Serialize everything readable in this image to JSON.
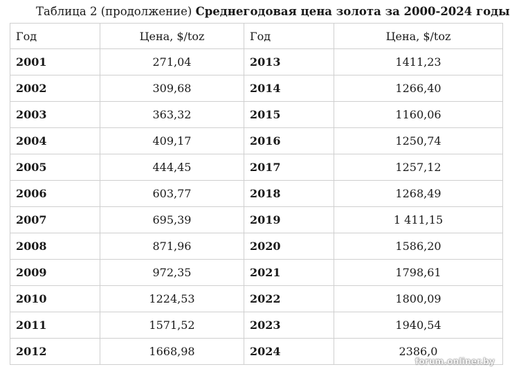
{
  "caption": {
    "prefix": "Таблица 2 (продолжение) ",
    "title": "Среднегодовая цена золота за 2000-2024 годы"
  },
  "table": {
    "headers": {
      "year_left": "Год",
      "price_left": "Цена, $/toz",
      "year_right": "Год",
      "price_right": "Цена, $/toz"
    },
    "rows": [
      {
        "year_left": "2001",
        "price_left": "271,04",
        "year_right": "2013",
        "price_right": "1411,23"
      },
      {
        "year_left": "2002",
        "price_left": "309,68",
        "year_right": "2014",
        "price_right": "1266,40"
      },
      {
        "year_left": "2003",
        "price_left": "363,32",
        "year_right": "2015",
        "price_right": "1160,06"
      },
      {
        "year_left": "2004",
        "price_left": "409,17",
        "year_right": "2016",
        "price_right": "1250,74"
      },
      {
        "year_left": "2005",
        "price_left": "444,45",
        "year_right": "2017",
        "price_right": "1257,12"
      },
      {
        "year_left": "2006",
        "price_left": "603,77",
        "year_right": "2018",
        "price_right": "1268,49"
      },
      {
        "year_left": "2007",
        "price_left": "695,39",
        "year_right": "2019",
        "price_right": "1 411,15"
      },
      {
        "year_left": "2008",
        "price_left": "871,96",
        "year_right": "2020",
        "price_right": "1586,20"
      },
      {
        "year_left": "2009",
        "price_left": "972,35",
        "year_right": "2021",
        "price_right": "1798,61"
      },
      {
        "year_left": "2010",
        "price_left": "1224,53",
        "year_right": "2022",
        "price_right": "1800,09"
      },
      {
        "year_left": "2011",
        "price_left": "1571,52",
        "year_right": "2023",
        "price_right": "1940,54"
      },
      {
        "year_left": "2012",
        "price_left": "1668,98",
        "year_right": "2024",
        "price_right": "2386,0"
      }
    ]
  },
  "watermark": "forum.onliner.by"
}
